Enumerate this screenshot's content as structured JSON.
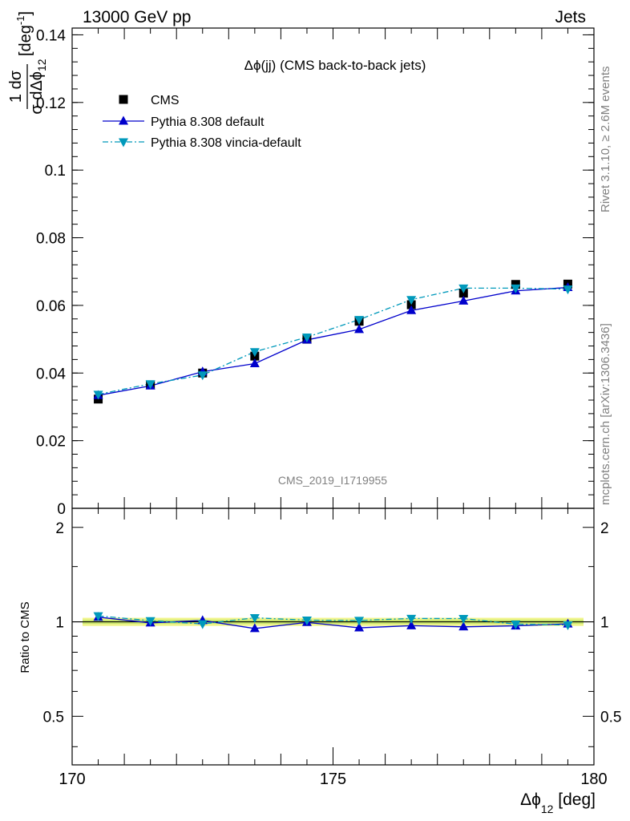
{
  "header": {
    "left": "13000 GeV pp",
    "right": "Jets",
    "title": "Δϕ(jj) (CMS back-to-back jets)",
    "analysis_tag": "CMS_2019_I1719955",
    "side_top": "Rivet 3.1.10, ≥ 2.6M events",
    "side_bottom": "mcplots.cern.ch [arXiv:1306.3436]"
  },
  "colors": {
    "data": "#000000",
    "pythia_default": "#0000cc",
    "pythia_vincia": "#0099bb",
    "band_outer": "#f0f58c",
    "band_inner": "#c8e66e"
  },
  "chart_data": [
    {
      "type": "line",
      "panel": "main",
      "title": "Δϕ(jj) (CMS back-to-back jets)",
      "xlabel": "Δϕ12 [deg]",
      "ylabel": "1/σ dσ/dΔϕ12 [deg⁻¹]",
      "xlim": [
        170,
        180
      ],
      "ylim": [
        0,
        0.142
      ],
      "y_ticks": [
        "0",
        "0.02",
        "0.04",
        "0.06",
        "0.08",
        "0.1",
        "0.12",
        "0.14"
      ],
      "x": [
        170.5,
        171.5,
        172.5,
        173.5,
        174.5,
        175.5,
        176.5,
        177.5,
        178.5,
        179.5
      ],
      "legend_position": "top-left",
      "series": [
        {
          "name": "CMS",
          "marker": "square",
          "values": [
            0.0323,
            0.0365,
            0.04,
            0.045,
            0.05,
            0.0553,
            0.0602,
            0.0636,
            0.0662,
            0.0663
          ]
        },
        {
          "name": "Pythia 8.308 default",
          "marker": "triangle-up",
          "line": "solid",
          "values": [
            0.0334,
            0.0362,
            0.0404,
            0.0428,
            0.0498,
            0.0529,
            0.0585,
            0.0613,
            0.0643,
            0.0653
          ]
        },
        {
          "name": "Pythia 8.308 vincia-default",
          "marker": "triangle-down",
          "line": "dashdot",
          "values": [
            0.0337,
            0.0368,
            0.0394,
            0.0463,
            0.0506,
            0.0558,
            0.0617,
            0.0651,
            0.0651,
            0.0648
          ]
        }
      ]
    },
    {
      "type": "line",
      "panel": "ratio",
      "xlabel": "Δϕ12 [deg]",
      "ylabel": "Ratio to CMS",
      "xlim": [
        170,
        180
      ],
      "ylim": [
        0.35,
        2.3
      ],
      "log_y": true,
      "y_ticks": [
        "0.5",
        "1",
        "2"
      ],
      "x_ticks": [
        "170",
        "175",
        "180"
      ],
      "x": [
        170.5,
        171.5,
        172.5,
        173.5,
        174.5,
        175.5,
        176.5,
        177.5,
        178.5,
        179.5
      ],
      "band": {
        "inner": 0.015,
        "outer": 0.03
      },
      "series": [
        {
          "name": "Pythia 8.308 default",
          "values": [
            1.035,
            0.992,
            1.01,
            0.952,
            0.996,
            0.957,
            0.972,
            0.964,
            0.971,
            0.985
          ]
        },
        {
          "name": "Pythia 8.308 vincia-default",
          "values": [
            1.045,
            1.008,
            0.985,
            1.03,
            1.012,
            1.01,
            1.025,
            1.024,
            0.983,
            0.977
          ]
        }
      ]
    }
  ]
}
